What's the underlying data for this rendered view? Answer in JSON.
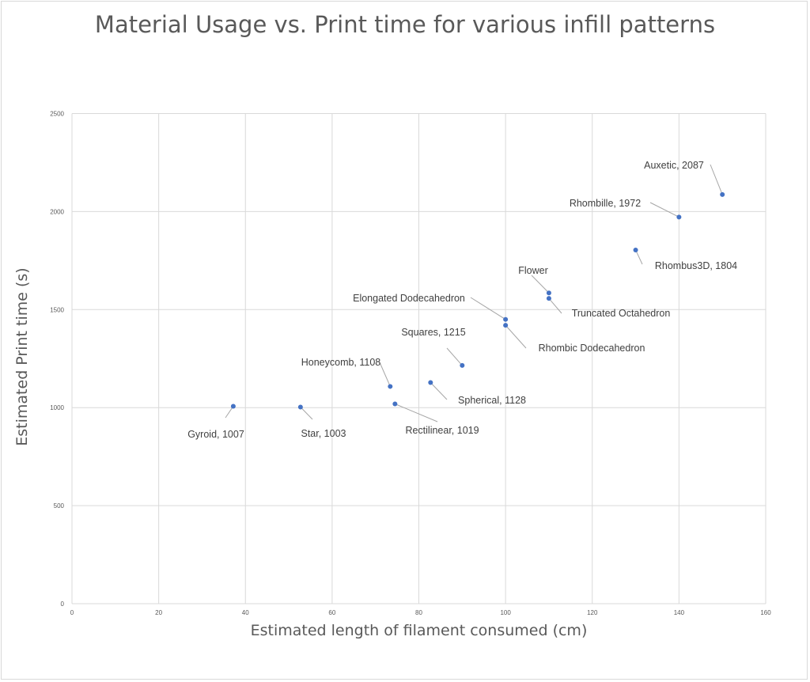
{
  "chart_data": {
    "type": "scatter",
    "title": "Material Usage vs. Print time for various infill patterns",
    "xlabel": "Estimated length of filament consumed (cm)",
    "ylabel": "Estimated Print time (s)",
    "xlim": [
      0,
      160
    ],
    "ylim": [
      0,
      2500
    ],
    "xticks": [
      "0",
      "20",
      "40",
      "60",
      "80",
      "100",
      "120",
      "140",
      "160"
    ],
    "yticks": [
      "0",
      "500",
      "1000",
      "1500",
      "2000",
      "2500"
    ],
    "grid": true,
    "legend": "none",
    "marker_color": "#4472c4",
    "points": [
      {
        "label": "Gyroid, 1007",
        "x": 37.2,
        "y": 1007
      },
      {
        "label": "Star, 1003",
        "x": 52.7,
        "y": 1003
      },
      {
        "label": "Rectilinear, 1019",
        "x": 74.5,
        "y": 1019
      },
      {
        "label": "Honeycomb, 1108",
        "x": 73.4,
        "y": 1108
      },
      {
        "label": "Spherical, 1128",
        "x": 82.7,
        "y": 1128
      },
      {
        "label": "Squares, 1215",
        "x": 90,
        "y": 1215
      },
      {
        "label": "Elongated Dodecahedron",
        "x": 100,
        "y": 1450
      },
      {
        "label": "Rhombic Dodecahedron",
        "x": 100,
        "y": 1420
      },
      {
        "label": "Flower",
        "x": 110,
        "y": 1585
      },
      {
        "label": "Truncated Octahedron",
        "x": 110,
        "y": 1557
      },
      {
        "label": "Rhombus3D, 1804",
        "x": 130,
        "y": 1804
      },
      {
        "label": "Rhombille, 1972",
        "x": 140,
        "y": 1972
      },
      {
        "label": "Auxetic, 2087",
        "x": 150,
        "y": 2087
      }
    ]
  }
}
